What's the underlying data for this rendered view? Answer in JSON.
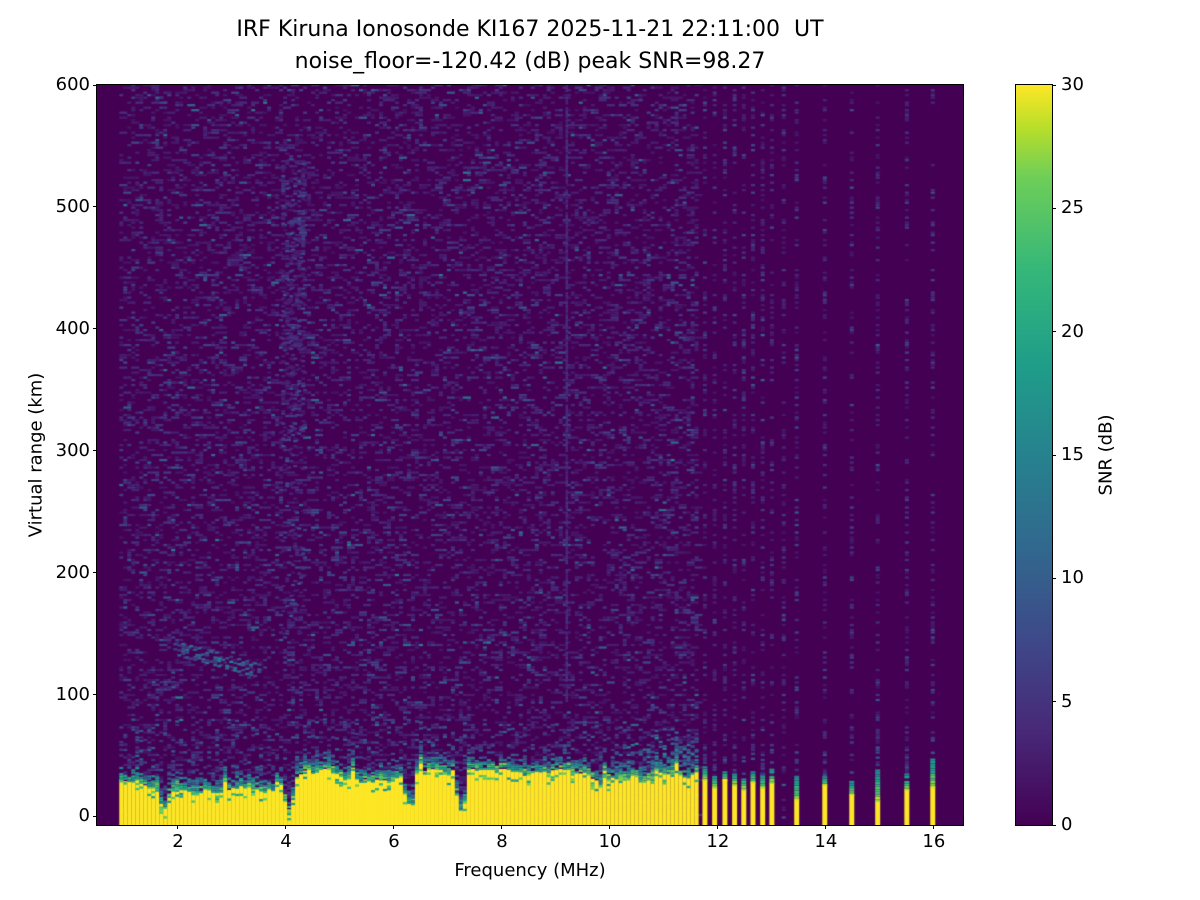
{
  "figure": {
    "title_line1": "IRF Kiruna Ionosonde KI167 2025-11-21 22:11:00  UT",
    "title_line2": "noise_floor=-120.42 (dB) peak SNR=98.27",
    "background_color": "#ffffff"
  },
  "chart_data": {
    "type": "heatmap",
    "title": "IRF Kiruna Ionosonde KI167 2025-11-21 22:11:00  UT",
    "subtitle": "noise_floor=-120.42 (dB) peak SNR=98.27",
    "xlabel": "Frequency (MHz)",
    "ylabel": "Virtual range (km)",
    "xlim": [
      0.5,
      16.54
    ],
    "ylim": [
      -7,
      600
    ],
    "xticks": [
      2,
      4,
      6,
      8,
      10,
      12,
      14,
      16
    ],
    "yticks": [
      0,
      100,
      200,
      300,
      400,
      500,
      600
    ],
    "grid": false,
    "noise_floor_db": -120.42,
    "peak_snr_db": 98.27,
    "colorbar": {
      "label": "SNR (dB)",
      "ticks": [
        0,
        5,
        10,
        15,
        20,
        25,
        30
      ],
      "vmin": 0,
      "vmax": 30,
      "colormap": "viridis",
      "min_color": "#440154",
      "max_color": "#fde725"
    },
    "features": {
      "no_data_below_mhz": 0.95,
      "continuous_sweep_range_mhz": [
        0.95,
        11.67
      ],
      "noise_speckle": {
        "density": 0.26,
        "snr_db_range": [
          2,
          9
        ]
      },
      "ground_clutter_band": {
        "freq_range_mhz": [
          0.95,
          11.67
        ],
        "yellow_top_km_mean": 29,
        "yellow_top_km_variation": 9,
        "notch_freqs_mhz": [
          1.75,
          4.05,
          6.3,
          7.25
        ],
        "snr_db": 30
      },
      "discrete_sounding_freqs_mhz": [
        11.76,
        11.94,
        12.13,
        12.31,
        12.48,
        12.65,
        12.83,
        13.0,
        13.22,
        13.46,
        13.98,
        14.48,
        14.96,
        15.5,
        15.98
      ],
      "echo_stripes": [
        {
          "f": 11.76,
          "yellow_top_km": 30,
          "teal_top_km": 42
        },
        {
          "f": 11.94,
          "yellow_top_km": 24,
          "teal_top_km": 34
        },
        {
          "f": 12.13,
          "yellow_top_km": 30,
          "teal_top_km": 38
        },
        {
          "f": 12.31,
          "yellow_top_km": 26,
          "teal_top_km": 36
        },
        {
          "f": 12.48,
          "yellow_top_km": 22,
          "teal_top_km": 33
        },
        {
          "f": 12.65,
          "yellow_top_km": 28,
          "teal_top_km": 37
        },
        {
          "f": 12.83,
          "yellow_top_km": 24,
          "teal_top_km": 35
        },
        {
          "f": 13.0,
          "yellow_top_km": 28,
          "teal_top_km": 40
        },
        {
          "f": 13.46,
          "yellow_top_km": 14,
          "teal_top_km": 34
        },
        {
          "f": 13.98,
          "yellow_top_km": 26,
          "teal_top_km": 34
        },
        {
          "f": 14.48,
          "yellow_top_km": 18,
          "teal_top_km": 30
        },
        {
          "f": 14.96,
          "yellow_top_km": 13,
          "teal_top_km": 40
        },
        {
          "f": 15.5,
          "yellow_top_km": 22,
          "teal_top_km": 36
        },
        {
          "f": 15.98,
          "yellow_top_km": 24,
          "teal_top_km": 50
        }
      ],
      "interference_line_mhz": 9.2,
      "diffuse_enhancement": {
        "freq_range_mhz": [
          3.95,
          4.32
        ],
        "alt_range_km": [
          150,
          545
        ]
      },
      "sporadic_e_trace": {
        "freq_range_mhz": [
          1.95,
          3.55
        ],
        "alt_range_km": [
          116,
          138
        ]
      }
    }
  }
}
